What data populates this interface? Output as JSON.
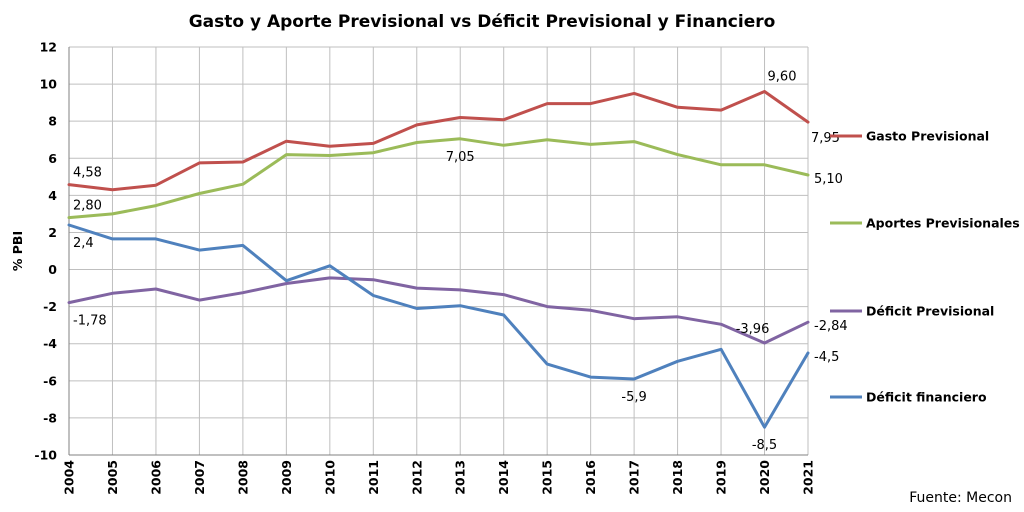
{
  "chart_data": {
    "type": "line",
    "title": "Gasto y Aporte Previsional  vs Déficit Previsional y Financiero",
    "ylabel": "% PBI",
    "source": "Fuente: Mecon",
    "ylim": [
      -10,
      12
    ],
    "yticks": [
      12,
      10,
      8,
      6,
      4,
      2,
      0,
      -2,
      -4,
      -6,
      -8,
      -10
    ],
    "grid": true,
    "legend": "right",
    "categories": [
      "2004",
      "2005",
      "2006",
      "2007",
      "2008",
      "2009",
      "2010",
      "2011",
      "2012",
      "2013",
      "2014",
      "2015",
      "2016",
      "2017",
      "2018",
      "2019",
      "2020",
      "2021"
    ],
    "series": [
      {
        "name": "Gasto Previsional",
        "color": "#c0504d",
        "values": [
          4.58,
          4.3,
          4.55,
          5.75,
          5.8,
          6.92,
          6.65,
          6.8,
          7.8,
          8.2,
          8.08,
          8.95,
          8.95,
          9.5,
          8.75,
          8.6,
          9.6,
          7.95
        ],
        "labels": [
          {
            "index": 0,
            "text": "4,58",
            "pos": "above"
          },
          {
            "index": 16,
            "text": "9,60",
            "pos": "above-right"
          },
          {
            "index": 17,
            "text": "7,95",
            "pos": "below-right"
          }
        ]
      },
      {
        "name": "Aportes Previsionales",
        "color": "#9bbb59",
        "values": [
          2.8,
          3.0,
          3.45,
          4.1,
          4.6,
          6.2,
          6.15,
          6.3,
          6.85,
          7.05,
          6.7,
          7.0,
          6.75,
          6.9,
          6.2,
          5.65,
          5.65,
          5.1
        ],
        "labels": [
          {
            "index": 0,
            "text": "2,80",
            "pos": "above"
          },
          {
            "index": 9,
            "text": "7,05",
            "pos": "below"
          },
          {
            "index": 17,
            "text": "5,10",
            "pos": "right"
          }
        ]
      },
      {
        "name": "Déficit Previsional",
        "color": "#8064a2",
        "values": [
          -1.78,
          -1.28,
          -1.05,
          -1.65,
          -1.25,
          -0.75,
          -0.45,
          -0.55,
          -1.0,
          -1.1,
          -1.35,
          -2.0,
          -2.2,
          -2.65,
          -2.55,
          -2.95,
          -3.96,
          -2.84
        ],
        "labels": [
          {
            "index": 0,
            "text": "-1,78",
            "pos": "below"
          },
          {
            "index": 16,
            "text": "-3,96",
            "pos": "above-left"
          },
          {
            "index": 17,
            "text": "-2,84",
            "pos": "right"
          }
        ]
      },
      {
        "name": "Déficit financiero",
        "color": "#4f81bd",
        "values": [
          2.4,
          1.65,
          1.65,
          1.05,
          1.3,
          -0.6,
          0.2,
          -1.4,
          -2.1,
          -1.95,
          -2.45,
          -5.1,
          -5.8,
          -5.9,
          -4.95,
          -4.3,
          -8.5,
          -4.5
        ],
        "labels": [
          {
            "index": 0,
            "text": "2,4",
            "pos": "below"
          },
          {
            "index": 13,
            "text": "-5,9",
            "pos": "below"
          },
          {
            "index": 16,
            "text": "-8,5",
            "pos": "below"
          },
          {
            "index": 17,
            "text": "-4,5",
            "pos": "right"
          }
        ]
      }
    ]
  }
}
